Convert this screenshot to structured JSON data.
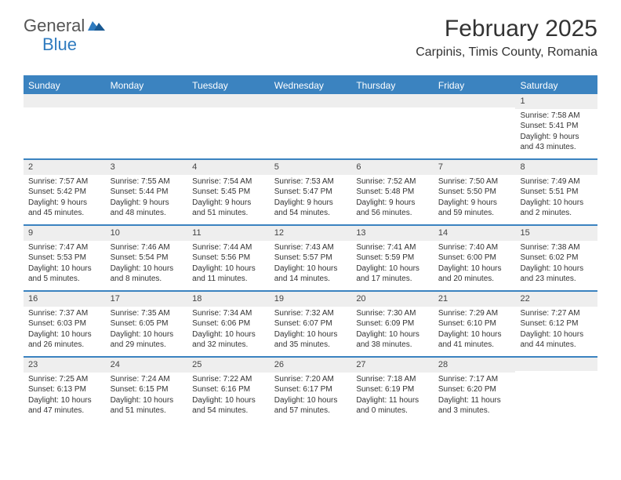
{
  "colors": {
    "brand_blue": "#3b83c0",
    "logo_blue": "#2f7bbf",
    "logo_gray": "#555555",
    "bar_bg": "#eeeeee",
    "text": "#333333",
    "background": "#ffffff"
  },
  "logo": {
    "word1": "General",
    "word2": "Blue"
  },
  "header": {
    "title": "February 2025",
    "location": "Carpinis, Timis County, Romania"
  },
  "day_names": [
    "Sunday",
    "Monday",
    "Tuesday",
    "Wednesday",
    "Thursday",
    "Friday",
    "Saturday"
  ],
  "weeks": [
    [
      {
        "n": "",
        "sunrise": "",
        "sunset": "",
        "daylight": ""
      },
      {
        "n": "",
        "sunrise": "",
        "sunset": "",
        "daylight": ""
      },
      {
        "n": "",
        "sunrise": "",
        "sunset": "",
        "daylight": ""
      },
      {
        "n": "",
        "sunrise": "",
        "sunset": "",
        "daylight": ""
      },
      {
        "n": "",
        "sunrise": "",
        "sunset": "",
        "daylight": ""
      },
      {
        "n": "",
        "sunrise": "",
        "sunset": "",
        "daylight": ""
      },
      {
        "n": "1",
        "sunrise": "Sunrise: 7:58 AM",
        "sunset": "Sunset: 5:41 PM",
        "daylight": "Daylight: 9 hours and 43 minutes."
      }
    ],
    [
      {
        "n": "2",
        "sunrise": "Sunrise: 7:57 AM",
        "sunset": "Sunset: 5:42 PM",
        "daylight": "Daylight: 9 hours and 45 minutes."
      },
      {
        "n": "3",
        "sunrise": "Sunrise: 7:55 AM",
        "sunset": "Sunset: 5:44 PM",
        "daylight": "Daylight: 9 hours and 48 minutes."
      },
      {
        "n": "4",
        "sunrise": "Sunrise: 7:54 AM",
        "sunset": "Sunset: 5:45 PM",
        "daylight": "Daylight: 9 hours and 51 minutes."
      },
      {
        "n": "5",
        "sunrise": "Sunrise: 7:53 AM",
        "sunset": "Sunset: 5:47 PM",
        "daylight": "Daylight: 9 hours and 54 minutes."
      },
      {
        "n": "6",
        "sunrise": "Sunrise: 7:52 AM",
        "sunset": "Sunset: 5:48 PM",
        "daylight": "Daylight: 9 hours and 56 minutes."
      },
      {
        "n": "7",
        "sunrise": "Sunrise: 7:50 AM",
        "sunset": "Sunset: 5:50 PM",
        "daylight": "Daylight: 9 hours and 59 minutes."
      },
      {
        "n": "8",
        "sunrise": "Sunrise: 7:49 AM",
        "sunset": "Sunset: 5:51 PM",
        "daylight": "Daylight: 10 hours and 2 minutes."
      }
    ],
    [
      {
        "n": "9",
        "sunrise": "Sunrise: 7:47 AM",
        "sunset": "Sunset: 5:53 PM",
        "daylight": "Daylight: 10 hours and 5 minutes."
      },
      {
        "n": "10",
        "sunrise": "Sunrise: 7:46 AM",
        "sunset": "Sunset: 5:54 PM",
        "daylight": "Daylight: 10 hours and 8 minutes."
      },
      {
        "n": "11",
        "sunrise": "Sunrise: 7:44 AM",
        "sunset": "Sunset: 5:56 PM",
        "daylight": "Daylight: 10 hours and 11 minutes."
      },
      {
        "n": "12",
        "sunrise": "Sunrise: 7:43 AM",
        "sunset": "Sunset: 5:57 PM",
        "daylight": "Daylight: 10 hours and 14 minutes."
      },
      {
        "n": "13",
        "sunrise": "Sunrise: 7:41 AM",
        "sunset": "Sunset: 5:59 PM",
        "daylight": "Daylight: 10 hours and 17 minutes."
      },
      {
        "n": "14",
        "sunrise": "Sunrise: 7:40 AM",
        "sunset": "Sunset: 6:00 PM",
        "daylight": "Daylight: 10 hours and 20 minutes."
      },
      {
        "n": "15",
        "sunrise": "Sunrise: 7:38 AM",
        "sunset": "Sunset: 6:02 PM",
        "daylight": "Daylight: 10 hours and 23 minutes."
      }
    ],
    [
      {
        "n": "16",
        "sunrise": "Sunrise: 7:37 AM",
        "sunset": "Sunset: 6:03 PM",
        "daylight": "Daylight: 10 hours and 26 minutes."
      },
      {
        "n": "17",
        "sunrise": "Sunrise: 7:35 AM",
        "sunset": "Sunset: 6:05 PM",
        "daylight": "Daylight: 10 hours and 29 minutes."
      },
      {
        "n": "18",
        "sunrise": "Sunrise: 7:34 AM",
        "sunset": "Sunset: 6:06 PM",
        "daylight": "Daylight: 10 hours and 32 minutes."
      },
      {
        "n": "19",
        "sunrise": "Sunrise: 7:32 AM",
        "sunset": "Sunset: 6:07 PM",
        "daylight": "Daylight: 10 hours and 35 minutes."
      },
      {
        "n": "20",
        "sunrise": "Sunrise: 7:30 AM",
        "sunset": "Sunset: 6:09 PM",
        "daylight": "Daylight: 10 hours and 38 minutes."
      },
      {
        "n": "21",
        "sunrise": "Sunrise: 7:29 AM",
        "sunset": "Sunset: 6:10 PM",
        "daylight": "Daylight: 10 hours and 41 minutes."
      },
      {
        "n": "22",
        "sunrise": "Sunrise: 7:27 AM",
        "sunset": "Sunset: 6:12 PM",
        "daylight": "Daylight: 10 hours and 44 minutes."
      }
    ],
    [
      {
        "n": "23",
        "sunrise": "Sunrise: 7:25 AM",
        "sunset": "Sunset: 6:13 PM",
        "daylight": "Daylight: 10 hours and 47 minutes."
      },
      {
        "n": "24",
        "sunrise": "Sunrise: 7:24 AM",
        "sunset": "Sunset: 6:15 PM",
        "daylight": "Daylight: 10 hours and 51 minutes."
      },
      {
        "n": "25",
        "sunrise": "Sunrise: 7:22 AM",
        "sunset": "Sunset: 6:16 PM",
        "daylight": "Daylight: 10 hours and 54 minutes."
      },
      {
        "n": "26",
        "sunrise": "Sunrise: 7:20 AM",
        "sunset": "Sunset: 6:17 PM",
        "daylight": "Daylight: 10 hours and 57 minutes."
      },
      {
        "n": "27",
        "sunrise": "Sunrise: 7:18 AM",
        "sunset": "Sunset: 6:19 PM",
        "daylight": "Daylight: 11 hours and 0 minutes."
      },
      {
        "n": "28",
        "sunrise": "Sunrise: 7:17 AM",
        "sunset": "Sunset: 6:20 PM",
        "daylight": "Daylight: 11 hours and 3 minutes."
      },
      {
        "n": "",
        "sunrise": "",
        "sunset": "",
        "daylight": ""
      }
    ]
  ]
}
